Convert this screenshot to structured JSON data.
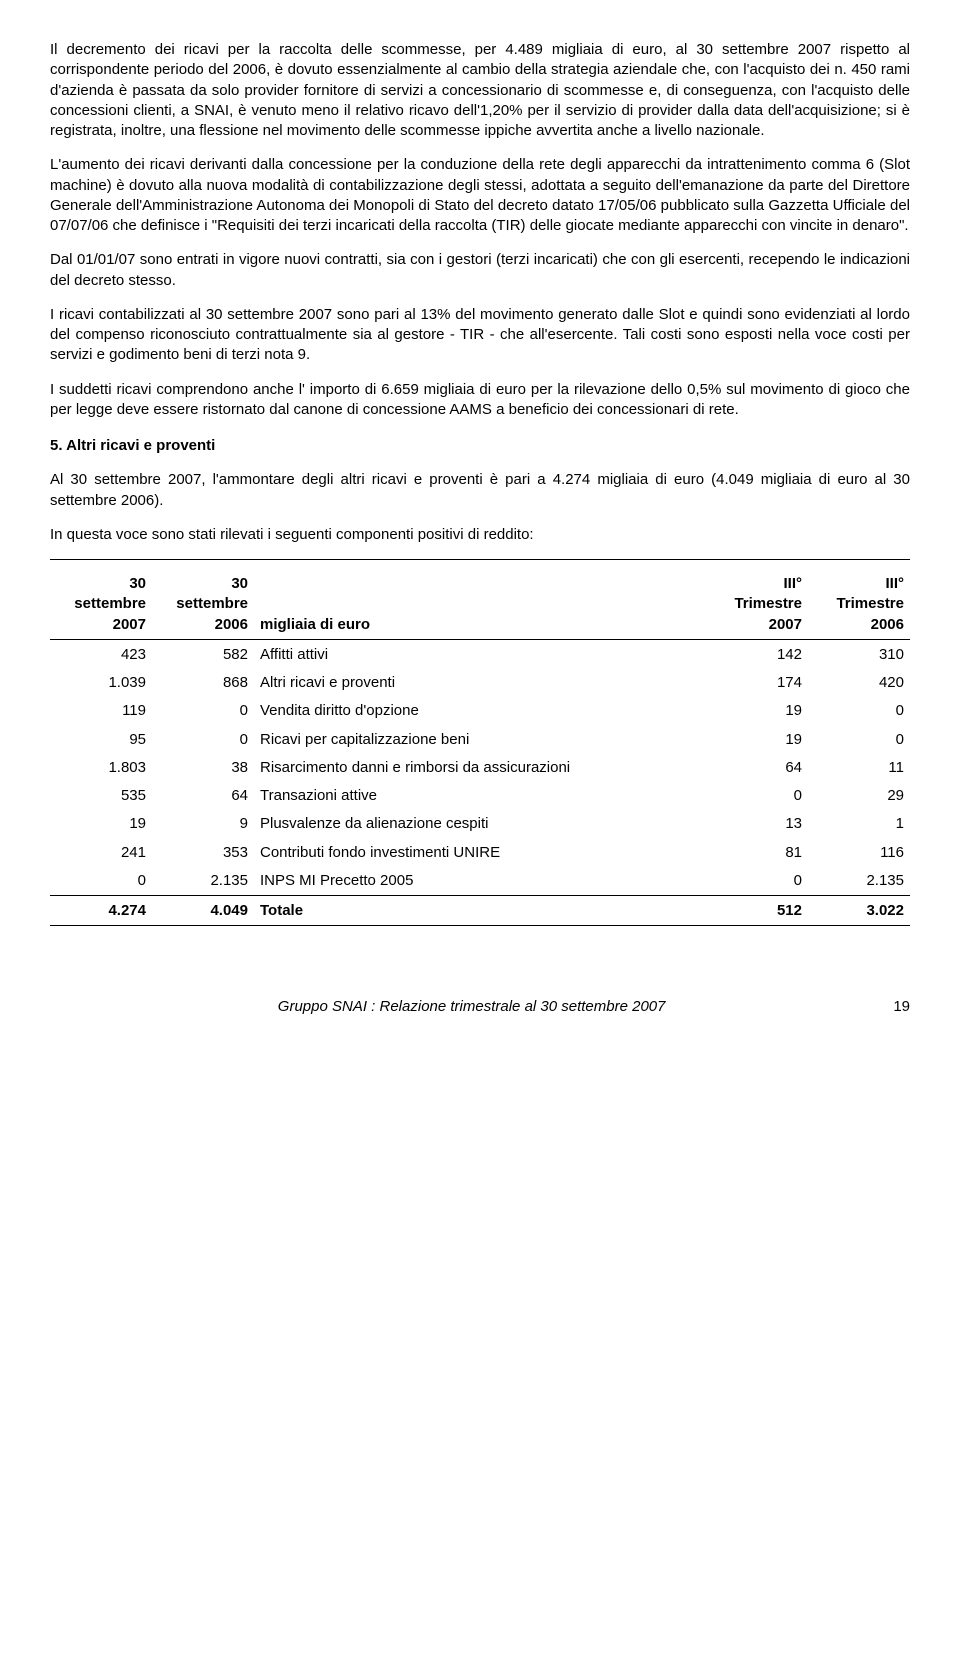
{
  "paragraphs": {
    "p1": "Il decremento dei ricavi per la raccolta delle scommesse, per 4.489 migliaia di euro, al 30 settembre 2007 rispetto al corrispondente periodo del 2006, è dovuto essenzialmente al cambio della strategia aziendale che, con l'acquisto dei n. 450 rami d'azienda è passata da solo provider fornitore di servizi a concessionario di scommesse e, di conseguenza, con l'acquisto delle concessioni clienti, a SNAI, è venuto meno il relativo ricavo dell'1,20% per il servizio di provider dalla data dell'acquisizione; si è registrata, inoltre, una flessione nel movimento delle scommesse ippiche avvertita anche a livello nazionale.",
    "p2": "L'aumento dei ricavi derivanti dalla concessione per la conduzione della rete degli apparecchi da intrattenimento comma 6 (Slot machine) è dovuto alla nuova modalità di contabilizzazione degli stessi, adottata a seguito dell'emanazione da parte del Direttore Generale dell'Amministrazione Autonoma dei Monopoli di Stato del decreto datato 17/05/06 pubblicato sulla Gazzetta Ufficiale del 07/07/06 che definisce i \"Requisiti dei terzi incaricati della raccolta (TIR) delle giocate mediante apparecchi con vincite in denaro\".",
    "p3": "Dal 01/01/07 sono entrati in vigore nuovi contratti, sia con i gestori (terzi incaricati) che con gli esercenti, recependo le indicazioni del decreto stesso.",
    "p4": "I ricavi contabilizzati al 30 settembre 2007 sono pari al 13% del movimento generato dalle Slot e quindi sono evidenziati al lordo del compenso riconosciuto contrattualmente sia al gestore - TIR - che all'esercente. Tali costi sono esposti nella voce costi per servizi e godimento beni di terzi nota 9.",
    "p5": "I suddetti ricavi comprendono anche l' importo di 6.659 migliaia di euro per la rilevazione dello 0,5% sul movimento di gioco che per legge deve essere ristornato dal canone di concessione AAMS a beneficio dei concessionari di rete.",
    "heading": "5. Altri ricavi  e proventi",
    "p6": "Al 30 settembre 2007, l'ammontare degli altri ricavi e proventi è pari a 4.274 migliaia di euro (4.049 migliaia di euro al 30 settembre 2006).",
    "p7": "In questa voce sono stati rilevati i seguenti componenti positivi di reddito:"
  },
  "table": {
    "headers": {
      "col1_l1": "30",
      "col1_l2": "settembre",
      "col1_l3": "2007",
      "col2_l1": "30",
      "col2_l2": "settembre",
      "col2_l3": "2006",
      "col3": "migliaia di euro",
      "col4_l1": "III°",
      "col4_l2": "Trimestre",
      "col4_l3": "2007",
      "col5_l1": "III°",
      "col5_l2": "Trimestre",
      "col5_l3": "2006"
    },
    "rows": [
      {
        "a": "423",
        "b": "582",
        "c": "Affitti attivi",
        "d": "142",
        "e": "310"
      },
      {
        "a": "1.039",
        "b": "868",
        "c": "Altri ricavi e proventi",
        "d": "174",
        "e": "420"
      },
      {
        "a": "119",
        "b": "0",
        "c": "Vendita diritto d'opzione",
        "d": "19",
        "e": "0"
      },
      {
        "a": "95",
        "b": "0",
        "c": "Ricavi per capitalizzazione beni",
        "d": "19",
        "e": "0"
      },
      {
        "a": "1.803",
        "b": "38",
        "c": "Risarcimento danni e rimborsi da assicurazioni",
        "d": "64",
        "e": "11"
      },
      {
        "a": "535",
        "b": "64",
        "c": "Transazioni attive",
        "d": "0",
        "e": "29"
      },
      {
        "a": "19",
        "b": "9",
        "c": "Plusvalenze da alienazione cespiti",
        "d": "13",
        "e": "1"
      },
      {
        "a": "241",
        "b": "353",
        "c": "Contributi fondo investimenti UNIRE",
        "d": "81",
        "e": "116"
      },
      {
        "a": "0",
        "b": "2.135",
        "c": "INPS MI Precetto 2005",
        "d": "0",
        "e": "2.135"
      }
    ],
    "totals": {
      "a": "4.274",
      "b": "4.049",
      "c": "Totale",
      "d": "512",
      "e": "3.022"
    }
  },
  "footer": {
    "text": "Gruppo SNAI : Relazione trimestrale al 30 settembre 2007",
    "page": "19"
  }
}
